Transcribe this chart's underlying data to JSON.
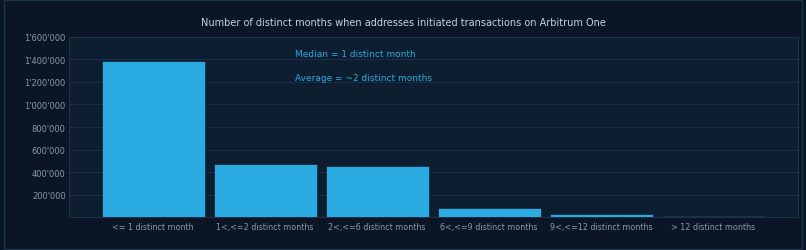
{
  "title": "Number of distinct months when addresses initiated transactions on Arbitrum One",
  "categories": [
    "<= 1 distinct month",
    "1<,<=2 distinct months",
    "2<,<=6 distinct months",
    "6<,<=9 distinct months",
    "9<,<=12 distinct months",
    "> 12 distinct months"
  ],
  "values": [
    1380000,
    470000,
    455000,
    85000,
    28000,
    10000
  ],
  "bar_color": "#29ABE2",
  "outer_bg_color": "#0a1628",
  "plot_bg_color": "#0d1e30",
  "grid_color": "#1e3248",
  "title_color": "#c8d0d8",
  "tick_color": "#8899aa",
  "annotation_median": "Median = 1 distinct month",
  "annotation_average": "Average = ~2 distinct months",
  "annotation_color": "#29ABE2",
  "ylim": [
    0,
    1600000
  ],
  "yticks": [
    0,
    200000,
    400000,
    600000,
    800000,
    1000000,
    1200000,
    1400000,
    1600000
  ],
  "ytick_labels": [
    "",
    "200'000",
    "400'000",
    "600'000",
    "800'000",
    "1'000'000",
    "1'200'000",
    "1'400'000",
    "1'600'000"
  ]
}
